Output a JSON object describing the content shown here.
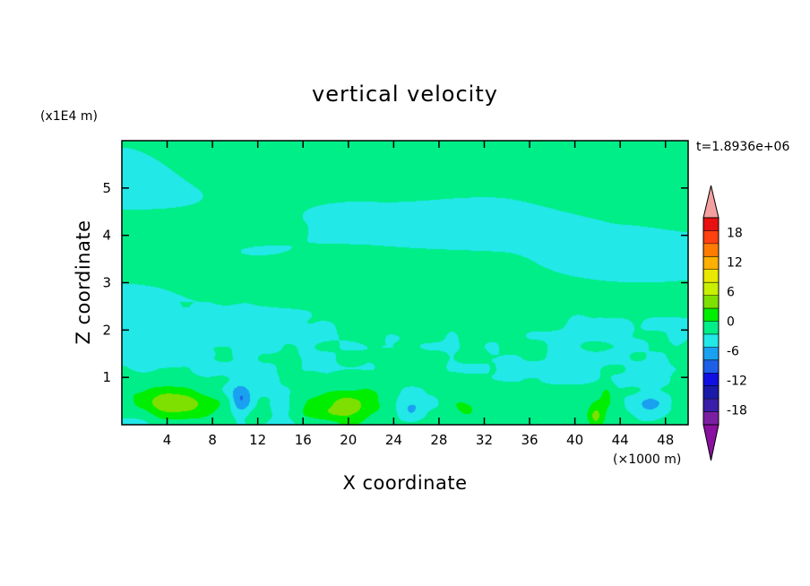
{
  "chart_data": {
    "type": "heatmap",
    "title": "vertical velocity",
    "xlabel": "X coordinate",
    "ylabel": "Z coordinate",
    "x_unit": "(×1000 m)",
    "y_unit": "(x1E4 m)",
    "time_label": "t=1.8936e+06",
    "xlim": [
      0,
      50
    ],
    "ylim": [
      0,
      6
    ],
    "x_ticks": [
      "4",
      "8",
      "12",
      "16",
      "20",
      "24",
      "28",
      "32",
      "36",
      "40",
      "44",
      "48"
    ],
    "x_tick_values": [
      4,
      8,
      12,
      16,
      20,
      24,
      28,
      32,
      36,
      40,
      44,
      48
    ],
    "y_ticks": [
      "1",
      "2",
      "3",
      "4",
      "5"
    ],
    "y_tick_values": [
      1,
      2,
      3,
      4,
      5
    ],
    "colorbar": {
      "min": -21,
      "max": 21,
      "step": 3,
      "tick_values": [
        18,
        12,
        6,
        0,
        -6,
        -12,
        -18
      ],
      "tick_labels": [
        "18",
        "12",
        "6",
        "0",
        "-6",
        "-12",
        "-18"
      ],
      "colors": [
        "#7b1fa2",
        "#3a1ea8",
        "#1a1aa8",
        "#1010e0",
        "#1e5fe8",
        "#1aa0f0",
        "#22e8e8",
        "#00ee88",
        "#00ee00",
        "#7ee000",
        "#c8f000",
        "#e8e800",
        "#ffb000",
        "#ff7c00",
        "#ff4010",
        "#e81010"
      ],
      "over_color": "#f4a0a0",
      "under_color": "#8a10a0"
    },
    "features": [
      {
        "name": "updraft",
        "x": 4.8,
        "z": 0.45,
        "w": 11,
        "peak": 7
      },
      {
        "name": "updraft",
        "x": 19.5,
        "z": 0.4,
        "w": 9,
        "peak": 6
      },
      {
        "name": "updraft",
        "x": 30.5,
        "z": 0.35,
        "w": 5,
        "peak": 3
      },
      {
        "name": "updraft",
        "x": 42.8,
        "z": 0.6,
        "w": 2,
        "peak": 3
      },
      {
        "name": "updraft",
        "x": 41.8,
        "z": 0.15,
        "w": 2,
        "peak": 5
      },
      {
        "name": "downdraft",
        "x": 10.5,
        "z": 0.55,
        "w": 3,
        "peak": -7
      },
      {
        "name": "downdraft",
        "x": 25.5,
        "z": 0.35,
        "w": 6,
        "peak": -4
      },
      {
        "name": "downdraft",
        "x": 46.5,
        "z": 0.4,
        "w": 5,
        "peak": -4
      },
      {
        "name": "downdraft",
        "x": 14.0,
        "z": 0.3,
        "w": 3,
        "peak": -3
      }
    ]
  }
}
